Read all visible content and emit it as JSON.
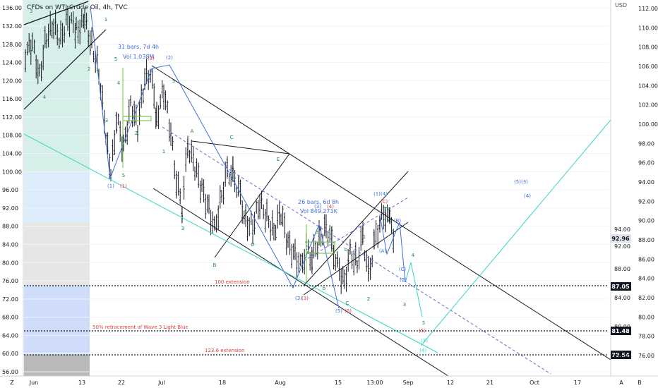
{
  "title": "CFDs on WTI Crude Oil, 4h, TVC",
  "currency": "USD",
  "colors": {
    "up": "#26a69a",
    "down": "#ef5350",
    "bar": "#131722",
    "blue": "#3f6fd8",
    "green": "#1a8c3a",
    "red": "#e03a3a",
    "aqua": "#38d6c6",
    "channel": "#131722"
  },
  "chart_data": {
    "type": "ohlc",
    "left_axis": {
      "ticks": [
        136,
        132,
        128,
        124,
        120,
        116,
        112,
        108,
        104,
        100,
        96,
        92,
        88,
        84,
        80,
        76,
        72,
        68,
        64,
        60,
        56
      ]
    },
    "right_axis": {
      "ticks": [
        112,
        110,
        108,
        106,
        104,
        102,
        100,
        98,
        96,
        94,
        92,
        90,
        88,
        86,
        84,
        82,
        80,
        78,
        76
      ]
    },
    "x_axis": {
      "ticks": [
        "Z",
        "Jun",
        "13",
        "22",
        "Jul",
        "18",
        "Aug",
        "15",
        "13:00",
        "Sep",
        "12",
        "21",
        "Oct",
        "17",
        "A",
        "B"
      ]
    },
    "price_labels": [
      {
        "value": 92.96,
        "text": "92.96",
        "style": "grey"
      },
      {
        "value": 87.05,
        "text": "87.05",
        "style": "dark"
      },
      {
        "value": 81.48,
        "text": "81.48",
        "style": "dark"
      },
      {
        "value": 78.54,
        "text": "78.54",
        "style": "dark"
      }
    ],
    "horizontal_levels": [
      {
        "value": 87.05,
        "label": "100 extension"
      },
      {
        "value": 81.48,
        "label": "50% retracement of Wave 3 Light Blue"
      },
      {
        "value": 78.54,
        "label": "123.6 extension"
      }
    ],
    "range_boxes": [
      {
        "label": "31 bars, 7d 4h",
        "volume": "Vol 1.038M"
      },
      {
        "label": "26 bars, 6d 8h",
        "volume": "Vol 849.271K"
      }
    ],
    "wave_labels": {
      "blue": [
        "(1)",
        "(2)",
        "(3)",
        "(4)",
        "(5)",
        "(4)",
        "(5)",
        "(B)",
        "(A)",
        "(C)",
        "(2)",
        "(5)(3)",
        "(4)",
        "(1)(4)"
      ],
      "red": [
        "(1)",
        "(3)",
        "(3)",
        "(5)",
        "(C)",
        "(5)"
      ],
      "green": [
        "1",
        "2",
        "3",
        "4",
        "5",
        "A",
        "B",
        "C",
        "D",
        "E",
        "a",
        "b",
        "c",
        "3",
        "4",
        "5"
      ],
      "aqua": [
        "(1)",
        "(3)",
        "(4)"
      ]
    }
  }
}
